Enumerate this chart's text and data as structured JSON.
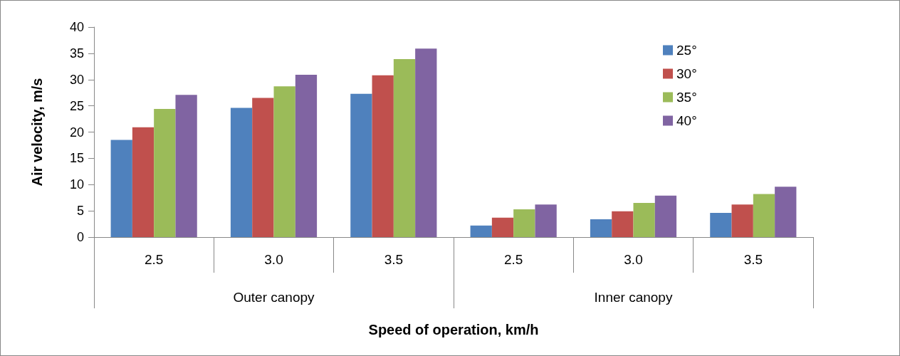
{
  "chart_data": {
    "type": "bar",
    "xlabel": "Speed of operation, km/h",
    "ylabel": "Air velocity, m/s",
    "categories": [
      "2.5",
      "3.0",
      "3.5",
      "2.5",
      "3.0",
      "3.5"
    ],
    "annotations": [
      "Outer canopy",
      "Inner canopy"
    ],
    "series": [
      {
        "name": "25°",
        "color": "#4f81bd",
        "values": [
          18.5,
          24.6,
          27.3,
          2.2,
          3.4,
          4.6
        ]
      },
      {
        "name": "30°",
        "color": "#c0504d",
        "values": [
          20.9,
          26.5,
          30.8,
          3.7,
          4.9,
          6.2
        ]
      },
      {
        "name": "35°",
        "color": "#9bbb59",
        "values": [
          24.4,
          28.7,
          33.9,
          5.3,
          6.5,
          8.2
        ]
      },
      {
        "name": "40°",
        "color": "#8064a2",
        "values": [
          27.1,
          30.9,
          35.9,
          6.2,
          7.9,
          9.6
        ]
      }
    ],
    "ylim": [
      0,
      40
    ],
    "yticks": [
      0,
      5,
      10,
      15,
      20,
      25,
      30,
      35,
      40
    ],
    "grid": false,
    "legend": "top right"
  }
}
